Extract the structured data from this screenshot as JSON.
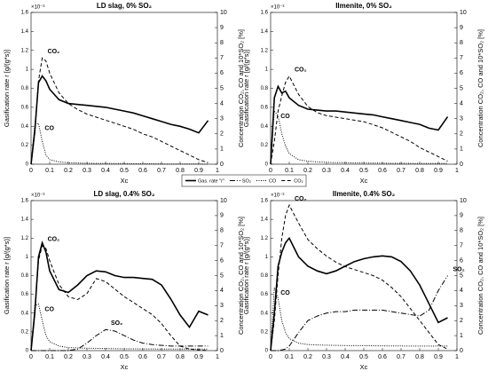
{
  "legend": [
    {
      "name": "Gas. rate \"r\"",
      "dash": "none",
      "width": 1.6
    },
    {
      "name": "SO₂",
      "dash": "6,2,1,2",
      "width": 1
    },
    {
      "name": "CO",
      "dash": "1,1.5",
      "width": 1
    },
    {
      "name": "CO₂",
      "dash": "4,2.5",
      "width": 1
    }
  ],
  "chart_data": [
    {
      "type": "line",
      "title": "LD slag, 0% SO₂",
      "xlabel": "Xc",
      "ylabel": "Gasification rate r [g/(g*s)]",
      "y2label": "Concentration CO₂, CO and 10*SO₂ [%]",
      "multiplier": "×10⁻³",
      "x": [
        0,
        0.02,
        0.04,
        0.06,
        0.08,
        0.1,
        0.15,
        0.2,
        0.25,
        0.3,
        0.35,
        0.4,
        0.45,
        0.5,
        0.55,
        0.6,
        0.65,
        0.7,
        0.75,
        0.8,
        0.85,
        0.9,
        0.95
      ],
      "xlim": [
        0,
        1
      ],
      "xticks": [
        0,
        0.1,
        0.2,
        0.3,
        0.4,
        0.5,
        0.6,
        0.7,
        0.8,
        0.9,
        1
      ],
      "ylim": [
        0,
        1.6
      ],
      "yticks": [
        0,
        0.2,
        0.4,
        0.6,
        0.8,
        1,
        1.2,
        1.4,
        1.6
      ],
      "y2lim": [
        0,
        10
      ],
      "y2ticks": [
        0,
        1,
        2,
        3,
        4,
        5,
        6,
        7,
        8,
        9,
        10
      ],
      "series": [
        {
          "name": "Gas. rate \"r\"",
          "color": "#000",
          "dash": "none",
          "width": 1.6,
          "values": [
            0,
            0.35,
            0.86,
            0.93,
            0.88,
            0.79,
            0.68,
            0.64,
            0.63,
            0.62,
            0.61,
            0.6,
            0.58,
            0.56,
            0.54,
            0.51,
            0.48,
            0.45,
            0.42,
            0.4,
            0.37,
            0.33,
            0.46
          ]
        },
        {
          "name": "CO₂",
          "color": "#000",
          "dash": "4,2.5",
          "width": 1,
          "axis": "y2",
          "values": [
            0,
            2,
            5.5,
            7.0,
            6.8,
            6.0,
            4.7,
            4.0,
            3.6,
            3.3,
            3.1,
            2.9,
            2.7,
            2.5,
            2.3,
            2.0,
            1.8,
            1.5,
            1.2,
            0.9,
            0.6,
            0.3,
            0.1
          ]
        },
        {
          "name": "CO",
          "color": "#000",
          "dash": "1,1.5",
          "width": 1,
          "axis": "y2",
          "values": [
            0,
            2.6,
            2.7,
            1.5,
            0.6,
            0.3,
            0.15,
            0.1,
            0.08,
            0.06,
            0.05,
            0.05,
            0.04,
            0.04,
            0.03,
            0.03,
            0.03,
            0.02,
            0.02,
            0.02,
            0.01,
            0.01,
            0
          ]
        }
      ]
    },
    {
      "type": "line",
      "title": "Ilmenite, 0% SO₂",
      "xlabel": "Xc",
      "ylabel": "Gasification rate r [g/(g*s)]",
      "y2label": "Concentration CO₂, CO and 10*SO₂ [%]",
      "multiplier": "×10⁻³",
      "x": [
        0,
        0.02,
        0.04,
        0.06,
        0.08,
        0.1,
        0.15,
        0.2,
        0.25,
        0.3,
        0.35,
        0.4,
        0.45,
        0.5,
        0.55,
        0.6,
        0.65,
        0.7,
        0.75,
        0.8,
        0.85,
        0.9,
        0.95
      ],
      "xlim": [
        0,
        1
      ],
      "xticks": [
        0,
        0.1,
        0.2,
        0.3,
        0.4,
        0.5,
        0.6,
        0.7,
        0.8,
        0.9,
        1
      ],
      "ylim": [
        0,
        1.6
      ],
      "yticks": [
        0,
        0.2,
        0.4,
        0.6,
        0.8,
        1,
        1.2,
        1.4,
        1.6
      ],
      "y2lim": [
        0,
        10
      ],
      "y2ticks": [
        0,
        1,
        2,
        3,
        4,
        5,
        6,
        7,
        8,
        9,
        10
      ],
      "series": [
        {
          "name": "Gas. rate \"r\"",
          "color": "#000",
          "dash": "none",
          "width": 1.6,
          "values": [
            0,
            0.7,
            0.82,
            0.75,
            0.77,
            0.7,
            0.62,
            0.58,
            0.57,
            0.56,
            0.56,
            0.55,
            0.54,
            0.53,
            0.52,
            0.5,
            0.48,
            0.46,
            0.44,
            0.42,
            0.38,
            0.36,
            0.5
          ]
        },
        {
          "name": "CO₂",
          "color": "#000",
          "dash": "4,2.5",
          "width": 1,
          "axis": "y2",
          "values": [
            0,
            1.5,
            3.5,
            4.5,
            5.4,
            5.8,
            4.6,
            3.8,
            3.4,
            3.2,
            3.1,
            3.0,
            2.9,
            2.8,
            2.6,
            2.4,
            2.1,
            1.8,
            1.5,
            1.1,
            0.8,
            0.5,
            0.2
          ]
        },
        {
          "name": "CO",
          "color": "#000",
          "dash": "1,1.5",
          "width": 1,
          "axis": "y2",
          "values": [
            0,
            3.5,
            3.2,
            2.0,
            1.2,
            0.7,
            0.3,
            0.2,
            0.15,
            0.12,
            0.1,
            0.1,
            0.08,
            0.08,
            0.07,
            0.07,
            0.06,
            0.06,
            0.05,
            0.05,
            0.05,
            0.05,
            0.05
          ]
        }
      ]
    },
    {
      "type": "line",
      "title": "LD slag, 0.4% SO₂",
      "xlabel": "Xc",
      "ylabel": "Gasification rate r [g/(g*s)]",
      "y2label": "Concentration CO₂, CO and 10*SO₂ [%]",
      "multiplier": "×10⁻³",
      "x": [
        0,
        0.02,
        0.04,
        0.06,
        0.08,
        0.1,
        0.15,
        0.2,
        0.25,
        0.3,
        0.35,
        0.4,
        0.45,
        0.5,
        0.55,
        0.6,
        0.65,
        0.7,
        0.75,
        0.8,
        0.85,
        0.9,
        0.95
      ],
      "xlim": [
        0,
        1
      ],
      "xticks": [
        0,
        0.1,
        0.2,
        0.3,
        0.4,
        0.5,
        0.6,
        0.7,
        0.8,
        0.9,
        1
      ],
      "ylim": [
        0,
        1.6
      ],
      "yticks": [
        0,
        0.2,
        0.4,
        0.6,
        0.8,
        1,
        1.2,
        1.4,
        1.6
      ],
      "y2lim": [
        0,
        10
      ],
      "y2ticks": [
        0,
        1,
        2,
        3,
        4,
        5,
        6,
        7,
        8,
        9,
        10
      ],
      "series": [
        {
          "name": "Gas. rate \"r\"",
          "color": "#000",
          "dash": "none",
          "width": 1.6,
          "values": [
            0,
            0.4,
            1.0,
            1.15,
            1.05,
            0.85,
            0.65,
            0.62,
            0.7,
            0.8,
            0.85,
            0.84,
            0.8,
            0.78,
            0.78,
            0.77,
            0.76,
            0.7,
            0.55,
            0.38,
            0.25,
            0.42,
            0.38
          ]
        },
        {
          "name": "CO₂",
          "color": "#000",
          "dash": "4,2.5",
          "width": 1,
          "axis": "y2",
          "values": [
            0,
            2.5,
            6.0,
            7.0,
            6.8,
            6.0,
            4.4,
            3.6,
            3.4,
            3.8,
            4.8,
            4.6,
            4.1,
            3.6,
            3.2,
            2.8,
            2.4,
            1.8,
            1.0,
            0.3,
            0.1,
            0.05,
            0
          ]
        },
        {
          "name": "CO",
          "color": "#000",
          "dash": "1,1.5",
          "width": 1,
          "axis": "y2",
          "values": [
            0,
            3.0,
            3.1,
            2.0,
            1.0,
            0.6,
            0.3,
            0.2,
            0.18,
            0.16,
            0.15,
            0.14,
            0.13,
            0.12,
            0.12,
            0.11,
            0.11,
            0.1,
            0.1,
            0.1,
            0.1,
            0.1,
            0.1
          ]
        },
        {
          "name": "SO₂",
          "color": "#000",
          "dash": "6,2,1,2",
          "width": 1,
          "axis": "y2",
          "values": [
            0,
            0,
            0,
            0,
            0,
            0,
            0,
            0,
            0.1,
            0.5,
            1.0,
            1.4,
            1.3,
            1.0,
            0.7,
            0.5,
            0.4,
            0.35,
            0.3,
            0.3,
            0.3,
            0.3,
            0.3
          ]
        }
      ]
    },
    {
      "type": "line",
      "title": "Ilmenite, 0.4% SO₂",
      "xlabel": "Xc",
      "ylabel": "Gasification rate r [g/(g*s)]",
      "y2label": "Concentration CO₂, CO and 10*SO₂ [%]",
      "multiplier": "×10⁻³",
      "x": [
        0,
        0.02,
        0.04,
        0.06,
        0.08,
        0.1,
        0.15,
        0.2,
        0.25,
        0.3,
        0.35,
        0.4,
        0.45,
        0.5,
        0.55,
        0.6,
        0.65,
        0.7,
        0.75,
        0.8,
        0.85,
        0.9,
        0.95
      ],
      "xlim": [
        0,
        1
      ],
      "xticks": [
        0,
        0.1,
        0.2,
        0.3,
        0.4,
        0.5,
        0.6,
        0.7,
        0.8,
        0.9,
        1
      ],
      "ylim": [
        0,
        1.6
      ],
      "yticks": [
        0,
        0.2,
        0.4,
        0.6,
        0.8,
        1,
        1.2,
        1.4,
        1.6
      ],
      "y2lim": [
        0,
        10
      ],
      "y2ticks": [
        0,
        1,
        2,
        3,
        4,
        5,
        6,
        7,
        8,
        9,
        10
      ],
      "series": [
        {
          "name": "Gas. rate \"r\"",
          "color": "#000",
          "dash": "none",
          "width": 1.6,
          "values": [
            0,
            0.4,
            0.9,
            1.05,
            1.15,
            1.2,
            1.0,
            0.9,
            0.85,
            0.82,
            0.85,
            0.9,
            0.95,
            0.98,
            1.0,
            1.01,
            1.0,
            0.95,
            0.85,
            0.7,
            0.5,
            0.3,
            0.35
          ]
        },
        {
          "name": "CO₂",
          "color": "#000",
          "dash": "4,2.5",
          "width": 1,
          "axis": "y2",
          "values": [
            0,
            2,
            5,
            7.5,
            9,
            9.7,
            8.5,
            7.4,
            6.8,
            6.3,
            5.9,
            5.6,
            5.4,
            5.2,
            5.0,
            4.7,
            4.2,
            3.6,
            2.8,
            2.0,
            1.2,
            0.4,
            0.1
          ]
        },
        {
          "name": "CO",
          "color": "#000",
          "dash": "1,1.5",
          "width": 1,
          "axis": "y2",
          "values": [
            0,
            4.2,
            3.5,
            2.0,
            1.2,
            0.8,
            0.5,
            0.4,
            0.38,
            0.36,
            0.35,
            0.34,
            0.33,
            0.33,
            0.32,
            0.32,
            0.31,
            0.31,
            0.3,
            0.3,
            0.3,
            0.3,
            0.3
          ]
        },
        {
          "name": "SO₂",
          "color": "#000",
          "dash": "6,2,1,2",
          "width": 1,
          "axis": "y2",
          "values": [
            0,
            0,
            0,
            0.05,
            0.1,
            0.3,
            1.2,
            2.0,
            2.3,
            2.5,
            2.6,
            2.6,
            2.7,
            2.7,
            2.7,
            2.7,
            2.6,
            2.5,
            2.4,
            2.3,
            2.7,
            4.0,
            5.0
          ]
        }
      ]
    }
  ]
}
